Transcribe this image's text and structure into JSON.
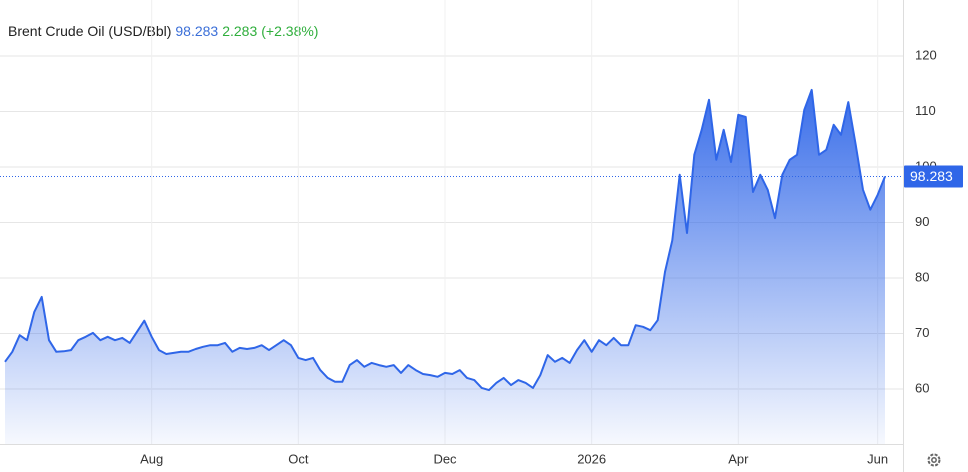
{
  "chart_data": {
    "type": "area",
    "title": "Brent Crude Oil (USD/Bbl)",
    "price": 98.283,
    "change": 2.283,
    "change_pct_label": "(+2.38%)",
    "color": "#2f66e8",
    "categories": [
      null,
      null,
      null,
      null,
      null,
      null,
      null,
      null,
      null,
      null,
      null,
      null,
      null,
      null,
      null,
      null,
      null,
      null,
      null,
      null,
      "Aug",
      null,
      null,
      null,
      null,
      null,
      null,
      null,
      null,
      null,
      null,
      null,
      null,
      null,
      null,
      null,
      null,
      null,
      null,
      null,
      "Oct",
      null,
      null,
      null,
      null,
      null,
      null,
      null,
      null,
      null,
      null,
      null,
      null,
      null,
      null,
      null,
      null,
      null,
      null,
      null,
      "Dec",
      null,
      null,
      null,
      null,
      null,
      null,
      null,
      null,
      null,
      null,
      null,
      null,
      null,
      null,
      null,
      null,
      null,
      null,
      null,
      "2026",
      null,
      null,
      null,
      null,
      null,
      null,
      null,
      null,
      null,
      null,
      null,
      null,
      null,
      null,
      null,
      null,
      null,
      null,
      null,
      "Apr",
      null,
      null,
      null,
      null,
      null,
      null,
      null,
      null,
      null,
      null,
      null,
      null,
      null,
      null,
      null,
      null,
      null,
      null,
      "Jun",
      null
    ],
    "values": [
      64.9,
      66.7,
      69.7,
      68.8,
      73.9,
      76.6,
      68.8,
      66.7,
      66.8,
      67,
      68.8,
      69.4,
      70.1,
      68.8,
      69.4,
      68.8,
      69.2,
      68.3,
      70.3,
      72.3,
      69.4,
      67,
      66.3,
      66.5,
      66.7,
      66.7,
      67.2,
      67.6,
      67.9,
      67.9,
      68.3,
      66.7,
      67.4,
      67.2,
      67.4,
      67.9,
      67,
      67.9,
      68.8,
      67.9,
      65.6,
      65.2,
      65.6,
      63.4,
      62,
      61.3,
      61.3,
      64.3,
      65.2,
      64,
      64.7,
      64.3,
      64,
      64.3,
      62.9,
      64.3,
      63.4,
      62.7,
      62.5,
      62.2,
      62.9,
      62.7,
      63.4,
      62,
      61.6,
      60.2,
      59.8,
      61.1,
      62,
      60.7,
      61.6,
      61.1,
      60.2,
      62.5,
      66.1,
      64.9,
      65.6,
      64.7,
      67,
      68.8,
      66.7,
      68.8,
      67.9,
      69.2,
      67.9,
      67.9,
      71.5,
      71.2,
      70.6,
      72.4,
      81.1,
      86.8,
      98.6,
      88.1,
      102.2,
      106.7,
      112.1,
      101.3,
      106.7,
      100.9,
      109.4,
      109,
      95.5,
      98.6,
      95.9,
      90.8,
      98.6,
      101.3,
      102.2,
      110.3,
      113.9,
      102.2,
      103.1,
      107.6,
      105.8,
      111.7,
      104,
      95.9,
      92.3,
      95,
      98.283
    ],
    "ylim": [
      50,
      130
    ],
    "yticks": [
      60,
      70,
      80,
      90,
      100,
      110,
      120
    ],
    "grid": true
  }
}
